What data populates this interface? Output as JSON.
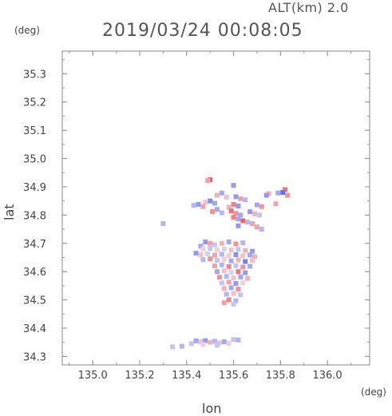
{
  "header": {
    "altitude": "ALT(km) 2.0",
    "datetime": "2019/03/24 00:08:05"
  },
  "axes": {
    "y_unit": "(deg)",
    "x_unit": "(deg)",
    "xlabel": "lon",
    "ylabel": "lat"
  },
  "chart_data": {
    "type": "heatmap",
    "title": "2019/03/24 00:08:05",
    "xlabel": "lon",
    "ylabel": "lat",
    "xlim": [
      134.87,
      136.18
    ],
    "ylim": [
      34.27,
      35.38
    ],
    "x_ticks": [
      "135.0",
      "135.2",
      "135.4",
      "135.6",
      "135.8",
      "136.0"
    ],
    "x_tick_values": [
      135.0,
      135.2,
      135.4,
      135.6,
      135.8,
      136.0
    ],
    "y_ticks": [
      "34.3",
      "34.4",
      "34.5",
      "34.6",
      "34.7",
      "34.8",
      "34.9",
      "35.0",
      "35.1",
      "35.2",
      "35.3"
    ],
    "y_tick_values": [
      34.3,
      34.4,
      34.5,
      34.6,
      34.7,
      34.8,
      34.9,
      35.0,
      35.1,
      35.2,
      35.3
    ],
    "colors": {
      "positive": "#e8585c",
      "negative": "#5a62e6",
      "neutral": "#f2eef6"
    },
    "points": [
      [
        135.5,
        34.925,
        0.9
      ],
      [
        135.49,
        34.922,
        0.5
      ],
      [
        135.6,
        34.905,
        -0.6
      ],
      [
        135.82,
        34.89,
        0.8
      ],
      [
        135.81,
        34.88,
        -0.9
      ],
      [
        135.83,
        34.87,
        0.6
      ],
      [
        135.79,
        34.878,
        -0.5
      ],
      [
        135.75,
        34.876,
        0.4
      ],
      [
        135.74,
        34.87,
        -0.6
      ],
      [
        135.55,
        34.878,
        -0.5
      ],
      [
        135.53,
        34.87,
        0.4
      ],
      [
        135.57,
        34.863,
        0.3
      ],
      [
        135.61,
        34.865,
        -0.6
      ],
      [
        135.63,
        34.858,
        0.5
      ],
      [
        135.65,
        34.854,
        -0.4
      ],
      [
        135.5,
        34.85,
        -0.7
      ],
      [
        135.48,
        34.845,
        0.3
      ],
      [
        135.52,
        34.842,
        -0.5
      ],
      [
        135.45,
        34.838,
        -0.6
      ],
      [
        135.43,
        34.834,
        -0.4
      ],
      [
        135.47,
        34.83,
        0.5
      ],
      [
        135.6,
        34.838,
        0.7
      ],
      [
        135.62,
        34.832,
        -0.6
      ],
      [
        135.58,
        34.828,
        0.4
      ],
      [
        135.7,
        34.836,
        -0.5
      ],
      [
        135.72,
        34.83,
        0.6
      ],
      [
        135.78,
        34.84,
        0.5
      ],
      [
        135.53,
        34.82,
        -0.5
      ],
      [
        135.51,
        34.812,
        0.6
      ],
      [
        135.55,
        34.808,
        -0.4
      ],
      [
        135.59,
        34.815,
        0.8
      ],
      [
        135.61,
        34.806,
        0.6
      ],
      [
        135.63,
        34.8,
        -0.5
      ],
      [
        135.67,
        34.812,
        -0.6
      ],
      [
        135.69,
        34.805,
        0.4
      ],
      [
        135.71,
        34.8,
        -0.3
      ],
      [
        135.6,
        34.792,
        0.7
      ],
      [
        135.62,
        34.786,
        -0.5
      ],
      [
        135.64,
        34.78,
        0.9
      ],
      [
        135.66,
        34.775,
        -0.4
      ],
      [
        135.68,
        34.77,
        0.5
      ],
      [
        135.62,
        34.762,
        -0.6
      ],
      [
        135.7,
        34.758,
        0.5
      ],
      [
        135.72,
        34.75,
        -0.4
      ],
      [
        135.3,
        34.77,
        -0.4
      ],
      [
        135.48,
        34.705,
        -0.6
      ],
      [
        135.5,
        34.7,
        0.5
      ],
      [
        135.52,
        34.695,
        -0.3
      ],
      [
        135.55,
        34.7,
        0.4
      ],
      [
        135.58,
        34.705,
        -0.5
      ],
      [
        135.61,
        34.698,
        0.6
      ],
      [
        135.64,
        34.702,
        -0.4
      ],
      [
        135.46,
        34.69,
        -0.5
      ],
      [
        135.47,
        34.68,
        0.2
      ],
      [
        135.5,
        34.682,
        -0.3
      ],
      [
        135.53,
        34.677,
        0.2
      ],
      [
        135.56,
        34.68,
        -0.2
      ],
      [
        135.59,
        34.676,
        0.3
      ],
      [
        135.62,
        34.679,
        -0.3
      ],
      [
        135.65,
        34.675,
        0.4
      ],
      [
        135.68,
        34.672,
        -0.6
      ],
      [
        135.44,
        34.665,
        -0.6
      ],
      [
        135.46,
        34.66,
        0.3
      ],
      [
        135.49,
        34.663,
        -0.2
      ],
      [
        135.52,
        34.658,
        0.5
      ],
      [
        135.55,
        34.661,
        -0.4
      ],
      [
        135.58,
        34.657,
        0.2
      ],
      [
        135.61,
        34.66,
        -0.7
      ],
      [
        135.64,
        34.656,
        0.3
      ],
      [
        135.67,
        34.659,
        -0.5
      ],
      [
        135.69,
        34.653,
        0.4
      ],
      [
        135.47,
        34.642,
        -0.4
      ],
      [
        135.5,
        34.645,
        0.6
      ],
      [
        135.53,
        34.64,
        -0.3
      ],
      [
        135.56,
        34.643,
        0.2
      ],
      [
        135.59,
        34.638,
        -0.5
      ],
      [
        135.62,
        34.641,
        0.4
      ],
      [
        135.65,
        34.636,
        -0.8
      ],
      [
        135.68,
        34.64,
        0.3
      ],
      [
        135.52,
        34.62,
        0.5
      ],
      [
        135.55,
        34.624,
        -0.4
      ],
      [
        135.58,
        34.618,
        0.7
      ],
      [
        135.61,
        34.621,
        -0.3
      ],
      [
        135.64,
        34.616,
        0.6
      ],
      [
        135.67,
        34.619,
        -0.5
      ],
      [
        135.53,
        34.6,
        -0.5
      ],
      [
        135.56,
        34.603,
        0.3
      ],
      [
        135.59,
        34.598,
        -0.2
      ],
      [
        135.62,
        34.6,
        0.8
      ],
      [
        135.65,
        34.596,
        -0.6
      ],
      [
        135.54,
        34.58,
        0.6
      ],
      [
        135.57,
        34.583,
        -0.4
      ],
      [
        135.6,
        34.578,
        0.3
      ],
      [
        135.63,
        34.581,
        -0.5
      ],
      [
        135.66,
        34.576,
        0.4
      ],
      [
        135.55,
        34.56,
        -0.3
      ],
      [
        135.58,
        34.563,
        0.5
      ],
      [
        135.61,
        34.558,
        -0.6
      ],
      [
        135.64,
        34.56,
        0.2
      ],
      [
        135.56,
        34.54,
        0.4
      ],
      [
        135.59,
        34.543,
        -0.5
      ],
      [
        135.62,
        34.538,
        0.6
      ],
      [
        135.57,
        34.52,
        -0.4
      ],
      [
        135.6,
        34.523,
        0.3
      ],
      [
        135.63,
        34.518,
        -0.3
      ],
      [
        135.58,
        34.5,
        0.7
      ],
      [
        135.61,
        34.497,
        -0.4
      ],
      [
        135.56,
        34.49,
        0.5
      ],
      [
        135.6,
        34.485,
        -0.3
      ],
      [
        135.44,
        34.355,
        -0.5
      ],
      [
        135.46,
        34.352,
        0.3
      ],
      [
        135.48,
        34.356,
        -0.6
      ],
      [
        135.5,
        34.35,
        0.4
      ],
      [
        135.52,
        34.354,
        -0.4
      ],
      [
        135.54,
        34.348,
        0.3
      ],
      [
        135.56,
        34.352,
        -0.5
      ],
      [
        135.58,
        34.346,
        0.2
      ],
      [
        135.42,
        34.345,
        -0.3
      ],
      [
        135.47,
        34.342,
        0.2
      ],
      [
        135.53,
        34.34,
        -0.3
      ],
      [
        135.38,
        34.336,
        -0.4
      ],
      [
        135.34,
        34.334,
        -0.3
      ],
      [
        135.6,
        34.36,
        -0.3
      ],
      [
        135.62,
        34.358,
        -0.4
      ]
    ]
  }
}
